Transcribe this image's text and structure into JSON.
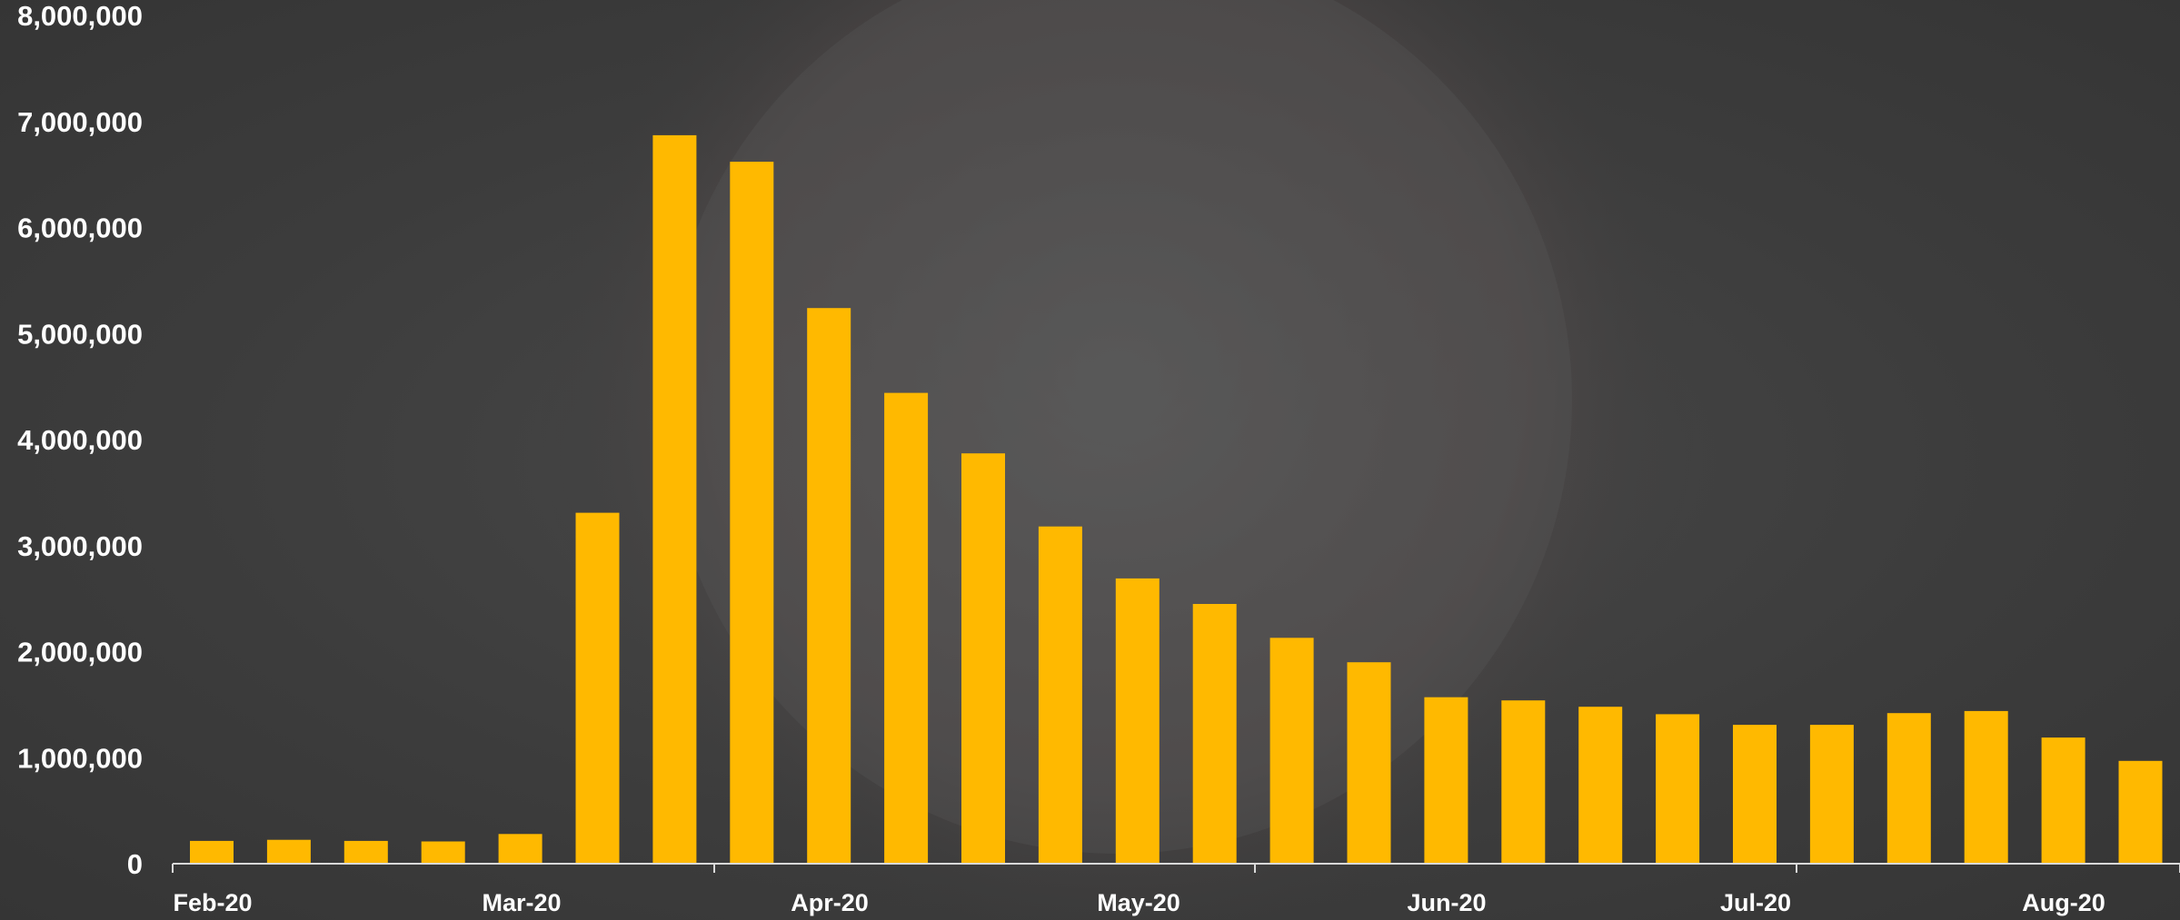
{
  "chart_data": {
    "type": "bar",
    "title": "",
    "xlabel": "",
    "ylabel": "",
    "ylim": [
      0,
      8000000
    ],
    "yticks": [
      0,
      1000000,
      2000000,
      3000000,
      4000000,
      5000000,
      6000000,
      7000000,
      8000000
    ],
    "ytick_labels": [
      "0",
      "1,000,000",
      "2,000,000",
      "3,000,000",
      "4,000,000",
      "5,000,000",
      "6,000,000",
      "7,000,000",
      "8,000,000"
    ],
    "xtick_labels": [
      "Feb-20",
      "Mar-20",
      "Apr-20",
      "May-20",
      "Jun-20",
      "Jul-20",
      "Aug-20"
    ],
    "grid": false,
    "legend": "none",
    "bar_color": "#FFB900",
    "axis_color": "#d9d9d9",
    "text_color": "#ffffff",
    "values": [
      215000,
      225000,
      215000,
      210000,
      280000,
      3310000,
      6870000,
      6620000,
      5240000,
      4440000,
      3870000,
      3180000,
      2690000,
      2450000,
      2130000,
      1900000,
      1570000,
      1540000,
      1480000,
      1410000,
      1310000,
      1310000,
      1420000,
      1440000,
      1190000,
      970000
    ]
  },
  "background": {
    "description_icon": "coronavirus-image"
  }
}
